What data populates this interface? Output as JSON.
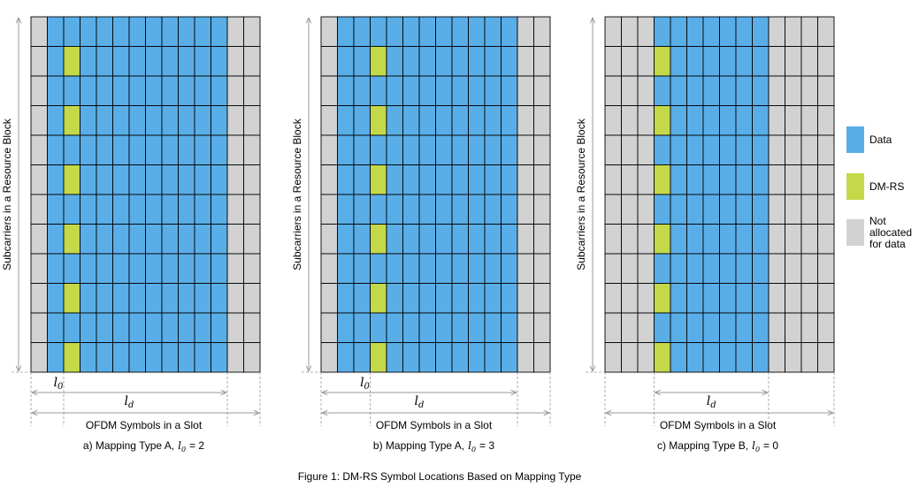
{
  "colors": {
    "data": "#5aaee8",
    "dmrs": "#c4d94a",
    "not_allocated": "#d2d2d2",
    "grid_line": "#000000",
    "arrow": "#9a9a9a"
  },
  "panels": [
    {
      "caption_prefix": "a) Mapping Type A,",
      "caption_sym": "l",
      "caption_sub": "0",
      "caption_suffix": "= 2",
      "ylabel": "Subcarriers in a Resource Block",
      "xlabel": "OFDM Symbols in a Slot",
      "ld_label": "l",
      "ld_sub": "d",
      "l0_label": "l",
      "l0_sub": "0",
      "show_l0": true,
      "data_start": 1,
      "data_end": 11,
      "dmrs_col": 2,
      "dmrs_rows": [
        1,
        3,
        5,
        7,
        9,
        11
      ],
      "ld_start": 0
    },
    {
      "caption_prefix": "b) Mapping Type A,",
      "caption_sym": "l",
      "caption_sub": "0",
      "caption_suffix": "= 3",
      "ylabel": "Subcarriers in a Resource Block",
      "xlabel": "OFDM Symbols in a Slot",
      "ld_label": "l",
      "ld_sub": "d",
      "l0_label": "l",
      "l0_sub": "0",
      "show_l0": true,
      "data_start": 1,
      "data_end": 11,
      "dmrs_col": 3,
      "dmrs_rows": [
        1,
        3,
        5,
        7,
        9,
        11
      ],
      "ld_start": 0
    },
    {
      "caption_prefix": "c) Mapping Type B,",
      "caption_sym": "l",
      "caption_sub": "0",
      "caption_suffix": "= 0",
      "ylabel": "Subcarriers in a Resource Block",
      "xlabel": "OFDM Symbols in a Slot",
      "ld_label": "l",
      "ld_sub": "d",
      "show_l0": false,
      "data_start": 3,
      "data_end": 9,
      "dmrs_col": 3,
      "dmrs_rows": [
        1,
        3,
        5,
        7,
        9,
        11
      ],
      "ld_start": 3
    }
  ],
  "grid": {
    "rows": 12,
    "cols": 14
  },
  "legend": [
    {
      "key": "data",
      "label_lines": [
        "Data"
      ]
    },
    {
      "key": "dmrs",
      "label_lines": [
        "DM-RS"
      ]
    },
    {
      "key": "not_allocated",
      "label_lines": [
        "Not",
        "allocated",
        "for data"
      ]
    }
  ],
  "figure_caption": "Figure 1: DM-RS Symbol Locations Based on Mapping Type"
}
